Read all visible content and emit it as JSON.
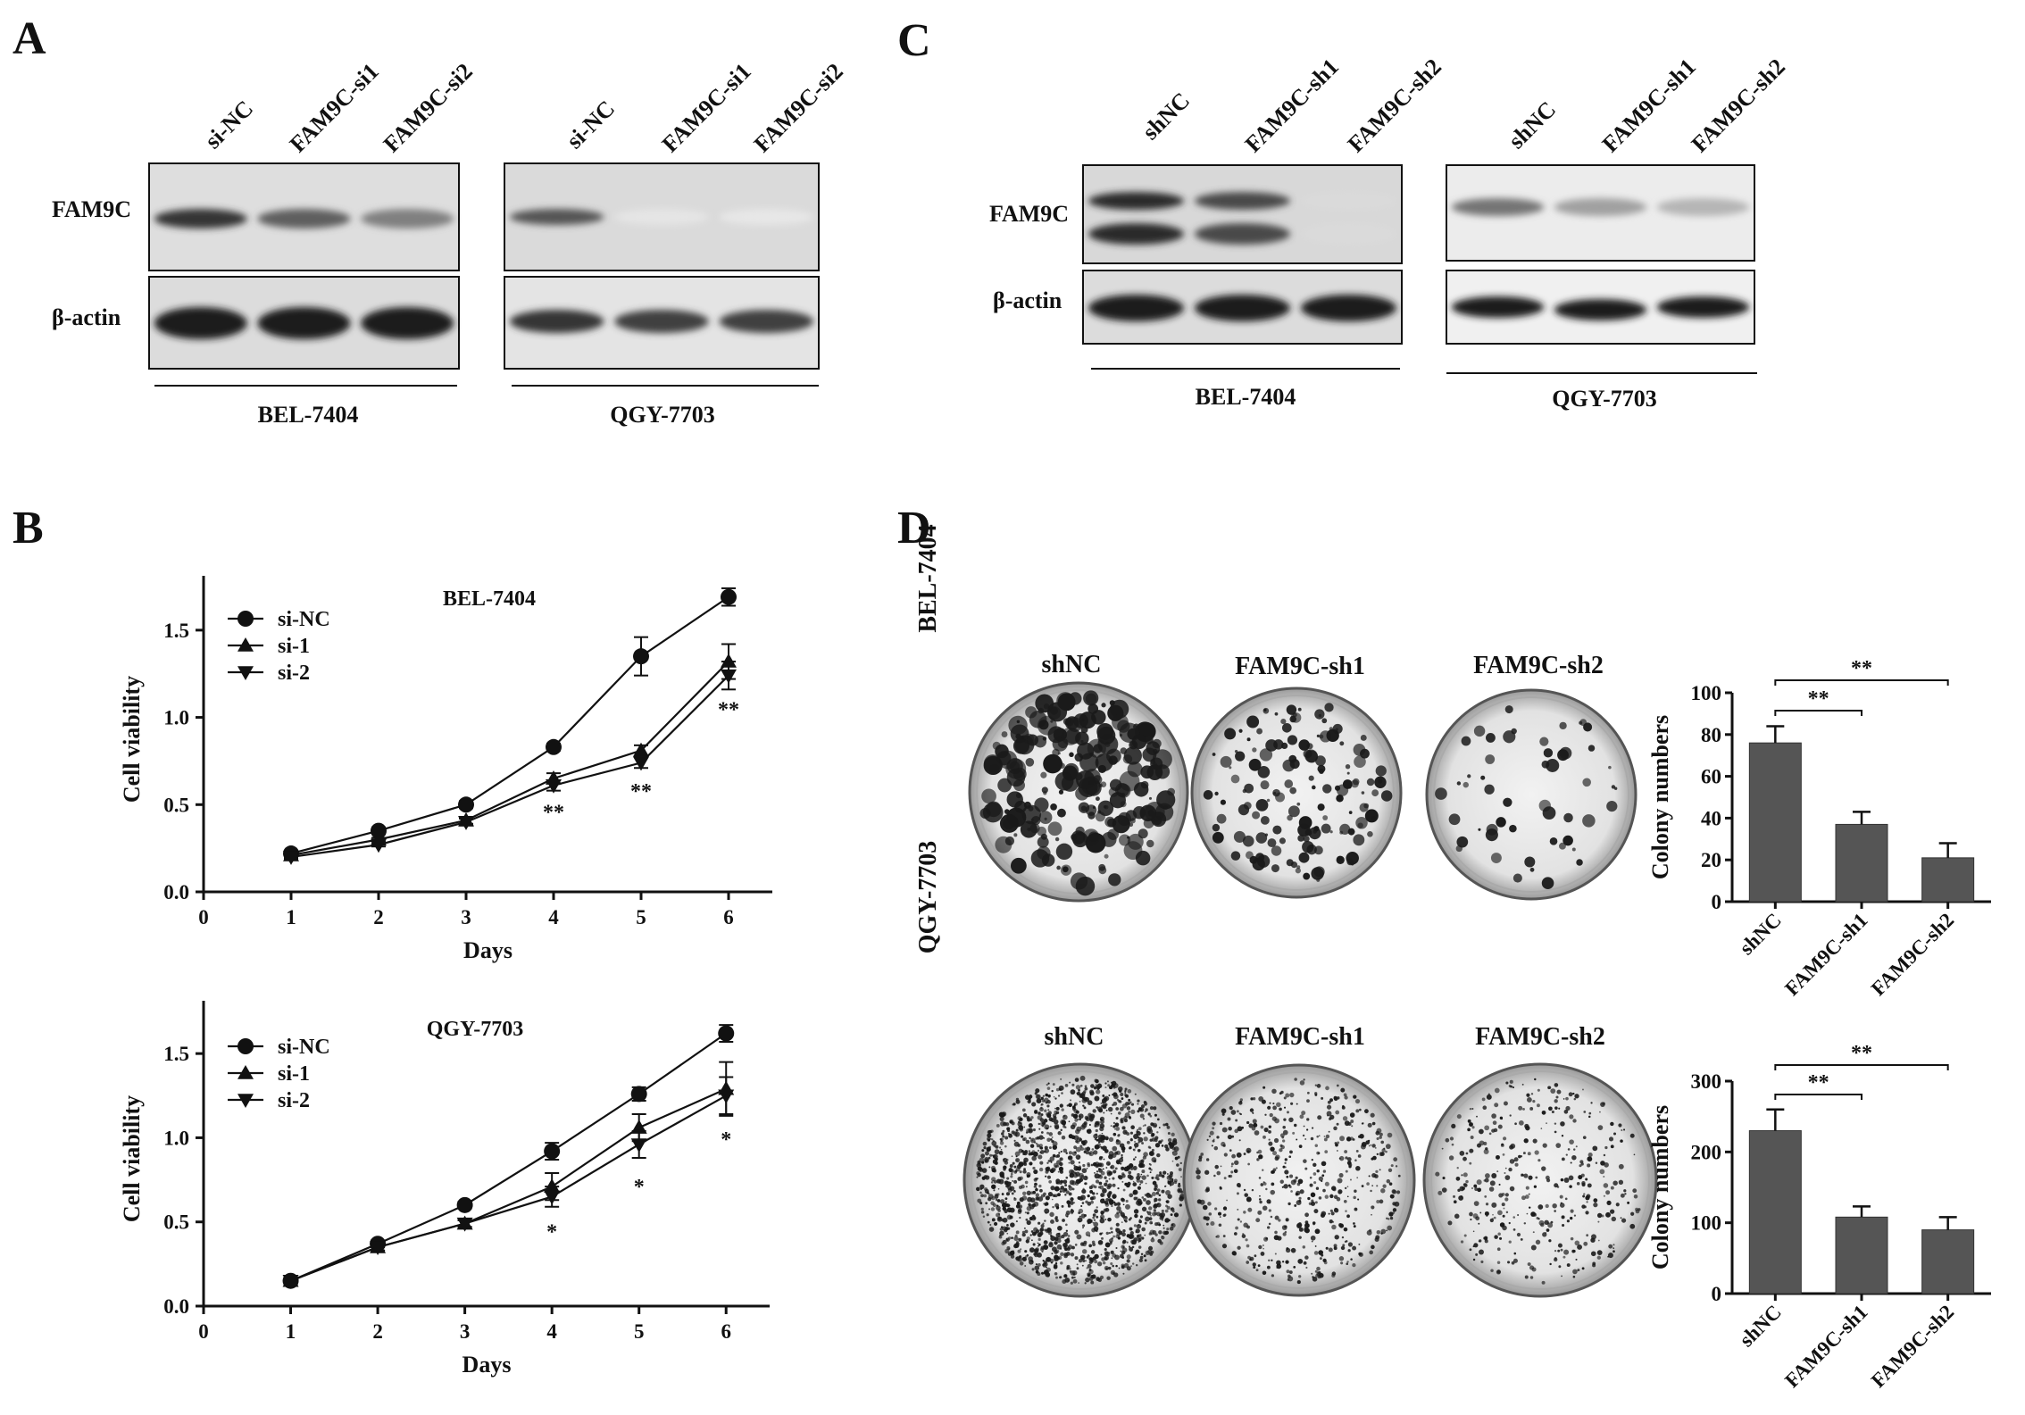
{
  "panels": {
    "A": {
      "letter": "A",
      "band_labels": [
        "FAM9C",
        "β-actin"
      ],
      "blots": [
        {
          "cell_line": "BEL-7404",
          "lanes": [
            "si-NC",
            "FAM9C-si1",
            "FAM9C-si2"
          ],
          "fam9c_intensity": [
            0.85,
            0.65,
            0.5
          ],
          "actin_intensity": [
            0.95,
            0.95,
            0.95
          ]
        },
        {
          "cell_line": "QGY-7703",
          "lanes": [
            "si-NC",
            "FAM9C-si1",
            "FAM9C-si2"
          ],
          "fam9c_intensity": [
            0.7,
            0.03,
            0.02
          ],
          "actin_intensity": [
            0.85,
            0.8,
            0.8
          ]
        }
      ]
    },
    "B": {
      "letter": "B"
    },
    "C": {
      "letter": "C",
      "band_labels": [
        "FAM9C",
        "β-actin"
      ],
      "blots": [
        {
          "cell_line": "BEL-7404",
          "lanes": [
            "shNC",
            "FAM9C-sh1",
            "FAM9C-sh2"
          ],
          "fam9c_intensity": [
            0.9,
            0.75,
            0.08
          ],
          "actin_intensity": [
            0.95,
            0.95,
            0.95
          ]
        },
        {
          "cell_line": "QGY-7703",
          "lanes": [
            "shNC",
            "FAM9C-sh1",
            "FAM9C-sh2"
          ],
          "fam9c_intensity": [
            0.55,
            0.35,
            0.25
          ],
          "actin_intensity": [
            0.95,
            0.95,
            0.95
          ]
        }
      ]
    },
    "D": {
      "letter": "D",
      "rows": [
        {
          "cell_line": "BEL-7404",
          "dish_labels": [
            "shNC",
            "FAM9C-sh1",
            "FAM9C-sh2"
          ],
          "colony_density": [
            0.9,
            0.6,
            0.2
          ]
        },
        {
          "cell_line": "QGY-7703",
          "dish_labels": [
            "shNC",
            "FAM9C-sh1",
            "FAM9C-sh2"
          ],
          "colony_density": [
            1.0,
            0.35,
            0.25
          ]
        }
      ]
    }
  },
  "chart_data": [
    {
      "type": "line",
      "title": "BEL-7404",
      "xlabel": "Days",
      "ylabel": "Cell viability",
      "xlim": [
        0,
        6.5
      ],
      "ylim": [
        0,
        1.75
      ],
      "xticks": [
        "0",
        "1",
        "2",
        "3",
        "4",
        "5",
        "6"
      ],
      "yticks": [
        "0.0",
        "0.5",
        "1.0",
        "1.5"
      ],
      "x": [
        1,
        2,
        3,
        4,
        5,
        6
      ],
      "series": [
        {
          "name": "si-NC",
          "marker": "circle",
          "values": [
            0.22,
            0.35,
            0.5,
            0.83,
            1.35,
            1.69
          ],
          "err": [
            0.01,
            0.02,
            0.02,
            0.02,
            0.11,
            0.05
          ]
        },
        {
          "name": "si-1",
          "marker": "triangle-up",
          "values": [
            0.21,
            0.3,
            0.41,
            0.65,
            0.81,
            1.32
          ],
          "err": [
            0.01,
            0.01,
            0.02,
            0.03,
            0.03,
            0.1
          ]
        },
        {
          "name": "si-2",
          "marker": "triangle-down",
          "values": [
            0.2,
            0.27,
            0.4,
            0.61,
            0.74,
            1.24
          ],
          "err": [
            0.01,
            0.01,
            0.02,
            0.03,
            0.03,
            0.08
          ]
        }
      ],
      "annotations": [
        {
          "x": 4,
          "text": "**"
        },
        {
          "x": 5,
          "text": "**"
        },
        {
          "x": 6,
          "text": "**"
        }
      ],
      "legend": "top-left"
    },
    {
      "type": "line",
      "title": "QGY-7703",
      "xlabel": "Days",
      "ylabel": "Cell viability",
      "xlim": [
        0,
        6.5
      ],
      "ylim": [
        0,
        1.75
      ],
      "xticks": [
        "0",
        "1",
        "2",
        "3",
        "4",
        "5",
        "6"
      ],
      "yticks": [
        "0.0",
        "0.5",
        "1.0",
        "1.5"
      ],
      "x": [
        1,
        2,
        3,
        4,
        5,
        6
      ],
      "series": [
        {
          "name": "si-NC",
          "marker": "circle",
          "values": [
            0.15,
            0.37,
            0.6,
            0.92,
            1.26,
            1.62
          ],
          "err": [
            0.02,
            0.02,
            0.02,
            0.05,
            0.04,
            0.05
          ]
        },
        {
          "name": "si-1",
          "marker": "triangle-up",
          "values": [
            0.15,
            0.35,
            0.49,
            0.71,
            1.06,
            1.29
          ],
          "err": [
            0.02,
            0.02,
            0.02,
            0.08,
            0.08,
            0.16
          ]
        },
        {
          "name": "si-2",
          "marker": "triangle-down",
          "values": [
            0.15,
            0.35,
            0.49,
            0.65,
            0.96,
            1.25
          ],
          "err": [
            0.02,
            0.02,
            0.02,
            0.06,
            0.08,
            0.11
          ]
        }
      ],
      "annotations": [
        {
          "x": 4,
          "text": "*"
        },
        {
          "x": 5,
          "text": "*"
        },
        {
          "x": 6,
          "text": "*"
        }
      ],
      "legend": "top-left"
    },
    {
      "type": "bar",
      "title": "",
      "ylabel": "Colony numbers",
      "categories": [
        "shNC",
        "FAM9C-sh1",
        "FAM9C-sh2"
      ],
      "values": [
        76,
        37,
        21
      ],
      "err": [
        8,
        6,
        7
      ],
      "ylim": [
        0,
        100
      ],
      "yticks": [
        "0",
        "20",
        "40",
        "60",
        "80",
        "100"
      ],
      "annotations": [
        {
          "from": "shNC",
          "to": "FAM9C-sh1",
          "text": "**"
        },
        {
          "from": "shNC",
          "to": "FAM9C-sh2",
          "text": "**"
        }
      ]
    },
    {
      "type": "bar",
      "title": "",
      "ylabel": "Colony numbers",
      "categories": [
        "shNC",
        "FAM9C-sh1",
        "FAM9C-sh2"
      ],
      "values": [
        230,
        108,
        90
      ],
      "err": [
        30,
        15,
        18
      ],
      "ylim": [
        0,
        300
      ],
      "yticks": [
        "0",
        "100",
        "200",
        "300"
      ],
      "annotations": [
        {
          "from": "shNC",
          "to": "FAM9C-sh1",
          "text": "**"
        },
        {
          "from": "shNC",
          "to": "FAM9C-sh2",
          "text": "**"
        }
      ]
    }
  ]
}
